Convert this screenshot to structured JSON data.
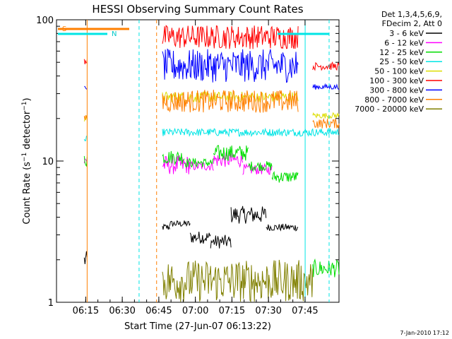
{
  "chart_data": {
    "type": "line",
    "title": "HESSI Observing Summary Count Rates",
    "xlabel": "Start Time (27-Jun-07 06:13:22)",
    "ylabel": "Count Rate (s⁻¹ detector⁻¹)",
    "ylabel_main": "Count Rate (s",
    "ylabel_mid": " detector",
    "ylabel_end": ")",
    "y_scale": "log",
    "ylim": [
      1,
      100
    ],
    "xlim_minutes": [
      6.2,
      103
    ],
    "x_tick_labels": [
      "06:15",
      "06:30",
      "06:45",
      "07:00",
      "07:15",
      "07:30",
      "07:45"
    ],
    "x_tick_minutes": [
      15,
      30,
      45,
      60,
      75,
      90,
      105
    ],
    "y_tick_labels": [
      "1",
      "10",
      "100"
    ],
    "legend_header": [
      "Det 1,3,4,5,6,9,",
      "FDecim 2, Att 0"
    ],
    "grid": false,
    "legend_position": "right",
    "timestamp": "7-Jan-2010 17:12",
    "annotations": [
      {
        "text": "S",
        "color": "#ff7f00"
      },
      {
        "text": "N",
        "color": "#00e5e5"
      }
    ],
    "series": [
      {
        "name": "3 - 6 keV",
        "color": "#000000",
        "segments": [
          [
            15.7,
            16.7,
            1.7,
            2.3
          ],
          [
            42.5,
            45,
            3.2,
            3.6
          ],
          [
            45,
            52,
            3.4,
            3.8
          ],
          [
            52,
            59,
            2.6,
            3.2
          ],
          [
            59,
            66,
            2.4,
            3.0
          ],
          [
            66,
            78,
            3.6,
            4.8
          ],
          [
            78,
            89,
            3.2,
            3.6
          ]
        ]
      },
      {
        "name": "6 - 12 keV",
        "color": "#ff00ff",
        "segments": [
          [
            15.7,
            16.7,
            9,
            11
          ],
          [
            42.5,
            52,
            8,
            11
          ],
          [
            52,
            60,
            8.5,
            10
          ],
          [
            60,
            70,
            9,
            11.5
          ],
          [
            70,
            80,
            8,
            9.5
          ]
        ]
      },
      {
        "name": "12 - 25 keV",
        "color": "#00dd00",
        "segments": [
          [
            15.7,
            16.7,
            9,
            12
          ],
          [
            42.5,
            50,
            9.5,
            12
          ],
          [
            50,
            60,
            9,
            10.5
          ],
          [
            60,
            72,
            10,
            13
          ],
          [
            72,
            80,
            8.5,
            10
          ],
          [
            80,
            89,
            7,
            8.5
          ],
          [
            94,
            103,
            1.5,
            2
          ]
        ]
      },
      {
        "name": "25 - 50 keV",
        "color": "#00e5e5",
        "segments": [
          [
            15.7,
            16.7,
            13,
            15
          ],
          [
            42.5,
            103,
            15,
            17
          ]
        ]
      },
      {
        "name": "50 - 100 keV",
        "color": "#dddd00",
        "segments": [
          [
            15.7,
            16.7,
            19,
            21
          ],
          [
            42.5,
            89,
            26,
            31
          ],
          [
            94,
            103,
            20,
            22
          ]
        ]
      },
      {
        "name": "100 - 300 keV",
        "color": "#ff0000",
        "segments": [
          [
            15.7,
            16.7,
            48,
            55
          ],
          [
            42.5,
            89,
            62,
            92
          ],
          [
            94,
            103,
            44,
            50
          ]
        ]
      },
      {
        "name": "300 - 800 keV",
        "color": "#0000ff",
        "segments": [
          [
            15.7,
            16.7,
            32,
            34
          ],
          [
            42.5,
            89,
            36,
            62
          ],
          [
            94,
            103,
            32,
            35
          ]
        ]
      },
      {
        "name": "800 - 7000 keV",
        "color": "#ff7f00",
        "segments": [
          [
            15.7,
            16.7,
            19,
            21
          ],
          [
            42.5,
            89,
            22,
            32
          ],
          [
            94,
            103,
            17,
            20
          ]
        ]
      },
      {
        "name": "7000 - 20000 keV",
        "color": "#808000",
        "segments": [
          [
            42.5,
            94,
            1,
            2
          ]
        ]
      }
    ],
    "vertical_lines": [
      {
        "minute": 16.7,
        "color": "#ff7f00",
        "style": "solid"
      },
      {
        "minute": 34.5,
        "color": "#00e5e5",
        "style": "dashed"
      },
      {
        "minute": 40.5,
        "color": "#ff7f00",
        "style": "dashed"
      },
      {
        "minute": 91.4,
        "color": "#00e5e5",
        "style": "solid"
      },
      {
        "minute": 105.5,
        "color": "#00e5e5",
        "style": "dashed"
      }
    ]
  }
}
